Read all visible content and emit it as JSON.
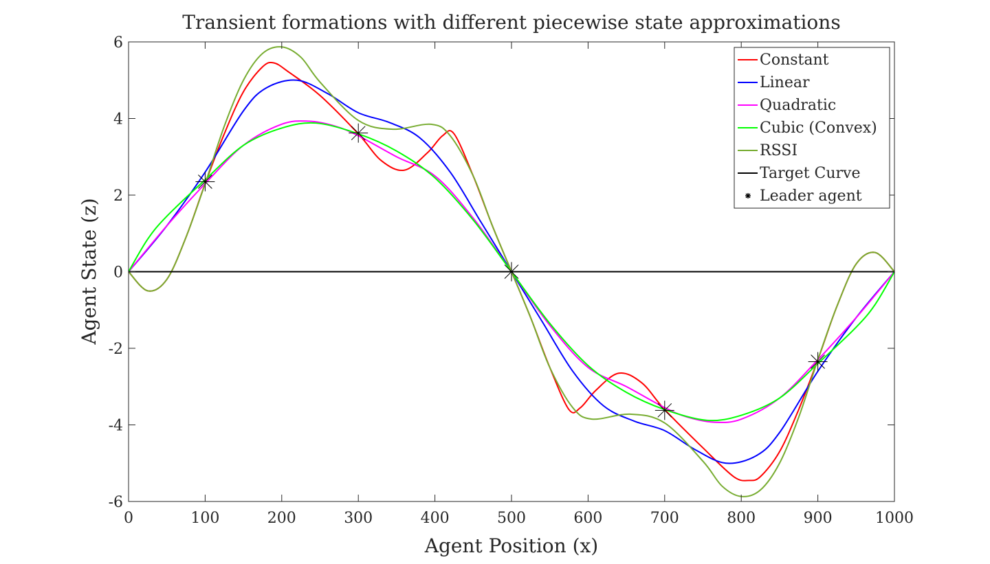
{
  "chart_data": {
    "type": "line",
    "title": "Transient formations with different piecewise state approximations",
    "xlabel": "Agent Position (x)",
    "ylabel": "Agent State (z)",
    "xlim": [
      0,
      1000
    ],
    "ylim": [
      -6,
      6
    ],
    "xticks": [
      0,
      100,
      200,
      300,
      400,
      500,
      600,
      700,
      800,
      900,
      1000
    ],
    "xtick_labels": [
      "0",
      "100",
      "200",
      "300",
      "400",
      "500",
      "600",
      "700",
      "800",
      "900",
      "1000"
    ],
    "yticks": [
      6,
      4,
      2,
      0,
      -2,
      -4,
      -6
    ],
    "ytick_labels": [
      "6",
      "4",
      "2",
      "0",
      "-2",
      "-4",
      "-6"
    ],
    "grid": false,
    "legend_position": "top-right",
    "series": [
      {
        "name": "Constant",
        "color": "#ff0000",
        "x": [
          0,
          25,
          50,
          75,
          100,
          125,
          150,
          175,
          190,
          210,
          250,
          300,
          330,
          360,
          390,
          410,
          425,
          450,
          475,
          500,
          525,
          550,
          575,
          590,
          610,
          640,
          670,
          700,
          750,
          790,
          810,
          825,
          850,
          875,
          900,
          925,
          950,
          975,
          1000
        ],
        "y": [
          0,
          -0.5,
          -0.2,
          0.9,
          2.3,
          3.6,
          4.7,
          5.35,
          5.45,
          5.2,
          4.6,
          3.6,
          2.9,
          2.65,
          3.1,
          3.55,
          3.6,
          2.5,
          1.2,
          0,
          -1.2,
          -2.5,
          -3.6,
          -3.55,
          -3.1,
          -2.65,
          -2.9,
          -3.6,
          -4.6,
          -5.35,
          -5.45,
          -5.35,
          -4.7,
          -3.6,
          -2.3,
          -0.9,
          0.2,
          0.5,
          0
        ]
      },
      {
        "name": "Linear",
        "color": "#0000ff",
        "x": [
          0,
          50,
          100,
          150,
          180,
          220,
          260,
          300,
          340,
          380,
          420,
          460,
          500,
          540,
          580,
          620,
          660,
          700,
          740,
          780,
          820,
          850,
          900,
          950,
          1000
        ],
        "y": [
          0,
          1.2,
          2.6,
          4.2,
          4.8,
          5.0,
          4.65,
          4.15,
          3.9,
          3.5,
          2.6,
          1.3,
          0,
          -1.3,
          -2.6,
          -3.5,
          -3.9,
          -4.15,
          -4.65,
          -5.0,
          -4.8,
          -4.2,
          -2.6,
          -1.2,
          0
        ]
      },
      {
        "name": "Quadratic",
        "color": "#ff00ff",
        "x": [
          0,
          50,
          100,
          150,
          200,
          235,
          270,
          300,
          350,
          400,
          450,
          500,
          550,
          600,
          650,
          700,
          730,
          765,
          800,
          850,
          900,
          950,
          1000
        ],
        "y": [
          0,
          1.2,
          2.3,
          3.3,
          3.85,
          3.93,
          3.8,
          3.55,
          3.0,
          2.5,
          1.4,
          0,
          -1.4,
          -2.5,
          -3.0,
          -3.55,
          -3.8,
          -3.93,
          -3.85,
          -3.3,
          -2.3,
          -1.2,
          0
        ]
      },
      {
        "name": "Cubic (Convex)",
        "color": "#00ff00",
        "x": [
          0,
          25,
          50,
          100,
          150,
          200,
          245,
          300,
          350,
          400,
          450,
          500,
          550,
          600,
          650,
          700,
          755,
          800,
          850,
          900,
          950,
          975,
          1000
        ],
        "y": [
          0,
          0.85,
          1.45,
          2.4,
          3.3,
          3.75,
          3.88,
          3.6,
          3.15,
          2.45,
          1.35,
          0,
          -1.35,
          -2.45,
          -3.15,
          -3.6,
          -3.88,
          -3.75,
          -3.3,
          -2.4,
          -1.45,
          -0.85,
          0
        ]
      },
      {
        "name": "RSSI",
        "color": "#77ac30",
        "x": [
          0,
          25,
          50,
          75,
          100,
          125,
          150,
          175,
          200,
          225,
          250,
          300,
          345,
          395,
          420,
          450,
          475,
          500,
          525,
          550,
          580,
          605,
          655,
          700,
          750,
          775,
          800,
          825,
          850,
          875,
          900,
          925,
          950,
          975,
          1000
        ],
        "y": [
          0,
          -0.5,
          -0.2,
          0.9,
          2.3,
          3.8,
          5.0,
          5.7,
          5.87,
          5.6,
          4.95,
          3.95,
          3.72,
          3.85,
          3.55,
          2.5,
          1.2,
          0,
          -1.2,
          -2.5,
          -3.55,
          -3.85,
          -3.72,
          -3.95,
          -4.95,
          -5.6,
          -5.87,
          -5.7,
          -5.0,
          -3.8,
          -2.3,
          -0.9,
          0.2,
          0.5,
          0
        ]
      },
      {
        "name": "Target Curve",
        "color": "#000000",
        "x": [
          0,
          1000
        ],
        "y": [
          0,
          0
        ]
      },
      {
        "name": "Leader agent",
        "color": "#000000",
        "marker": "asterisk",
        "x": [
          100,
          300,
          500,
          700,
          900
        ],
        "y": [
          2.35,
          3.62,
          0,
          -3.62,
          -2.35
        ]
      }
    ]
  }
}
